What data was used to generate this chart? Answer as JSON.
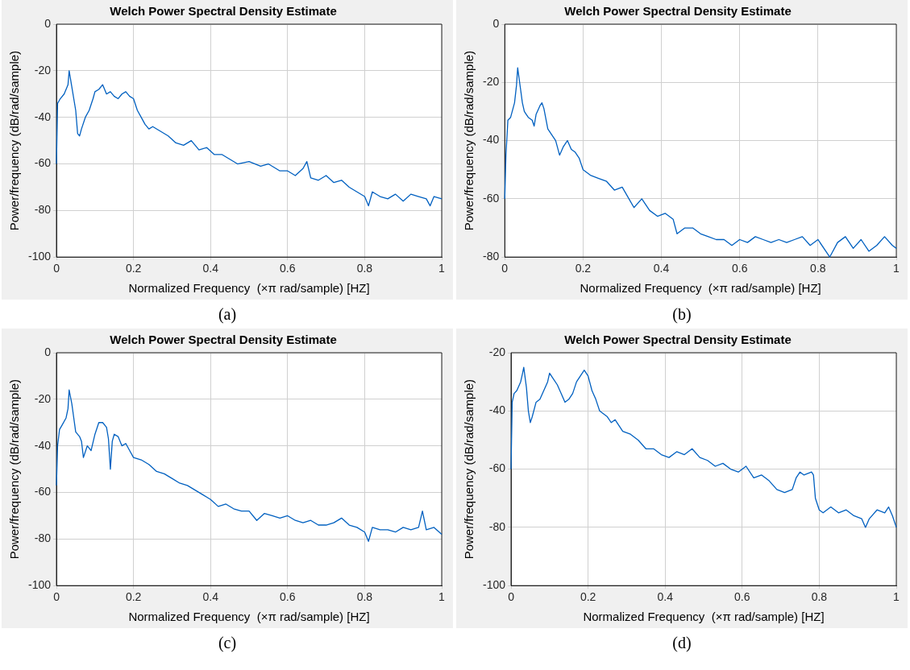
{
  "chart_data": [
    {
      "type": "line",
      "title": "Welch Power Spectral Density Estimate",
      "xlabel": "Normalized Frequency  (×π rad/sample) [HZ]",
      "ylabel": "Power/frequency (dB/rad/sample)",
      "annotations": [
        "(a)"
      ],
      "xlim": [
        0,
        1
      ],
      "xticks": [
        0,
        0.2,
        0.4,
        0.6,
        0.8,
        1
      ],
      "ylim": [
        -100,
        0
      ],
      "yticks": [
        -100,
        -80,
        -60,
        -40,
        -20,
        0
      ],
      "grid": true,
      "legend": false,
      "marker": "none",
      "series": [
        {
          "color": "#0060c0",
          "x": [
            0,
            0.003,
            0.01,
            0.02,
            0.03,
            0.033,
            0.04,
            0.05,
            0.055,
            0.06,
            0.065,
            0.075,
            0.085,
            0.095,
            0.1,
            0.11,
            0.12,
            0.13,
            0.14,
            0.15,
            0.16,
            0.17,
            0.18,
            0.19,
            0.2,
            0.21,
            0.22,
            0.23,
            0.24,
            0.25,
            0.27,
            0.29,
            0.31,
            0.33,
            0.35,
            0.37,
            0.39,
            0.41,
            0.43,
            0.45,
            0.47,
            0.5,
            0.53,
            0.55,
            0.58,
            0.6,
            0.62,
            0.64,
            0.65,
            0.66,
            0.68,
            0.7,
            0.72,
            0.74,
            0.76,
            0.78,
            0.8,
            0.81,
            0.82,
            0.84,
            0.86,
            0.88,
            0.9,
            0.92,
            0.94,
            0.96,
            0.97,
            0.98,
            1
          ],
          "values": [
            -60,
            -34,
            -32,
            -30,
            -26,
            -20,
            -27,
            -37,
            -47,
            -48,
            -45,
            -40,
            -37,
            -32,
            -29,
            -28,
            -26,
            -30,
            -29,
            -31,
            -32,
            -30,
            -29,
            -31,
            -32,
            -37,
            -40,
            -43,
            -45,
            -44,
            -46,
            -48,
            -51,
            -52,
            -50,
            -54,
            -53,
            -56,
            -56,
            -58,
            -60,
            -59,
            -61,
            -60,
            -63,
            -63,
            -65,
            -62,
            -59,
            -66,
            -67,
            -65,
            -68,
            -67,
            -70,
            -72,
            -74,
            -78,
            -72,
            -74,
            -75,
            -73,
            -76,
            -73,
            -74,
            -75,
            -78,
            -74,
            -75
          ]
        }
      ]
    },
    {
      "type": "line",
      "title": "Welch Power Spectral Density Estimate",
      "xlabel": "Normalized Frequency  (×π rad/sample) [HZ]",
      "ylabel": "Power/frequency (dB/rad/sample)",
      "annotations": [
        "(b)"
      ],
      "xlim": [
        0,
        1
      ],
      "xticks": [
        0,
        0.2,
        0.4,
        0.6,
        0.8,
        1
      ],
      "ylim": [
        -80,
        0
      ],
      "yticks": [
        -80,
        -60,
        -40,
        -20,
        0
      ],
      "grid": true,
      "legend": false,
      "marker": "none",
      "series": [
        {
          "color": "#0060c0",
          "x": [
            0,
            0.003,
            0.008,
            0.015,
            0.025,
            0.03,
            0.033,
            0.04,
            0.045,
            0.05,
            0.055,
            0.06,
            0.07,
            0.075,
            0.08,
            0.09,
            0.095,
            0.1,
            0.11,
            0.12,
            0.13,
            0.14,
            0.15,
            0.16,
            0.17,
            0.18,
            0.19,
            0.2,
            0.22,
            0.24,
            0.26,
            0.28,
            0.3,
            0.33,
            0.35,
            0.37,
            0.39,
            0.41,
            0.43,
            0.44,
            0.46,
            0.48,
            0.5,
            0.52,
            0.54,
            0.56,
            0.58,
            0.6,
            0.62,
            0.64,
            0.66,
            0.68,
            0.7,
            0.72,
            0.74,
            0.76,
            0.78,
            0.8,
            0.83,
            0.85,
            0.87,
            0.89,
            0.91,
            0.93,
            0.95,
            0.97,
            0.99,
            1
          ],
          "values": [
            -60,
            -45,
            -33,
            -32,
            -27,
            -21,
            -15,
            -22,
            -27,
            -30,
            -31,
            -32,
            -33,
            -35,
            -31,
            -28,
            -27,
            -29,
            -36,
            -38,
            -40,
            -45,
            -42,
            -40,
            -43,
            -44,
            -46,
            -50,
            -52,
            -53,
            -54,
            -57,
            -56,
            -63,
            -60,
            -64,
            -66,
            -65,
            -67,
            -72,
            -70,
            -70,
            -72,
            -73,
            -74,
            -74,
            -76,
            -74,
            -75,
            -73,
            -74,
            -75,
            -74,
            -75,
            -74,
            -73,
            -76,
            -74,
            -80,
            -75,
            -73,
            -77,
            -74,
            -78,
            -76,
            -73,
            -76,
            -77
          ]
        }
      ]
    },
    {
      "type": "line",
      "title": "Welch Power Spectral Density Estimate",
      "xlabel": "Normalized Frequency  (×π rad/sample) [HZ]",
      "ylabel": "Power/frequency (dB/rad/sample)",
      "annotations": [
        "(c)"
      ],
      "xlim": [
        0,
        1
      ],
      "xticks": [
        0,
        0.2,
        0.4,
        0.6,
        0.8,
        1
      ],
      "ylim": [
        -100,
        0
      ],
      "yticks": [
        -100,
        -80,
        -60,
        -40,
        -20,
        0
      ],
      "grid": true,
      "legend": false,
      "marker": "none",
      "series": [
        {
          "color": "#0060c0",
          "x": [
            0,
            0.003,
            0.008,
            0.015,
            0.025,
            0.03,
            0.033,
            0.04,
            0.045,
            0.05,
            0.06,
            0.065,
            0.07,
            0.08,
            0.09,
            0.1,
            0.11,
            0.12,
            0.13,
            0.135,
            0.14,
            0.145,
            0.15,
            0.16,
            0.17,
            0.18,
            0.19,
            0.2,
            0.22,
            0.24,
            0.26,
            0.28,
            0.3,
            0.32,
            0.34,
            0.36,
            0.38,
            0.4,
            0.42,
            0.44,
            0.46,
            0.48,
            0.5,
            0.52,
            0.54,
            0.56,
            0.58,
            0.6,
            0.62,
            0.64,
            0.66,
            0.68,
            0.7,
            0.72,
            0.74,
            0.76,
            0.78,
            0.8,
            0.81,
            0.82,
            0.84,
            0.86,
            0.88,
            0.9,
            0.92,
            0.94,
            0.95,
            0.96,
            0.98,
            1
          ],
          "values": [
            -57,
            -40,
            -33,
            -31,
            -28,
            -24,
            -16,
            -22,
            -28,
            -34,
            -36,
            -38,
            -45,
            -40,
            -42,
            -35,
            -30,
            -30,
            -32,
            -37,
            -50,
            -38,
            -35,
            -36,
            -40,
            -39,
            -42,
            -45,
            -46,
            -48,
            -51,
            -52,
            -54,
            -56,
            -57,
            -59,
            -61,
            -63,
            -66,
            -65,
            -67,
            -68,
            -68,
            -72,
            -69,
            -70,
            -71,
            -70,
            -72,
            -73,
            -72,
            -74,
            -74,
            -73,
            -71,
            -74,
            -75,
            -77,
            -81,
            -75,
            -76,
            -76,
            -77,
            -75,
            -76,
            -75,
            -68,
            -76,
            -75,
            -78
          ]
        }
      ]
    },
    {
      "type": "line",
      "title": "Welch Power Spectral Density Estimate",
      "xlabel": "Normalized Frequency  (×π rad/sample) [HZ]",
      "ylabel": "Power/frequency (dB/rad/sample)",
      "annotations": [
        "(d)"
      ],
      "xlim": [
        0,
        1
      ],
      "xticks": [
        0,
        0.2,
        0.4,
        0.6,
        0.8,
        1
      ],
      "ylim": [
        -100,
        -20
      ],
      "yticks": [
        -100,
        -80,
        -60,
        -40,
        -20
      ],
      "grid": true,
      "legend": false,
      "marker": "none",
      "series": [
        {
          "color": "#0060c0",
          "x": [
            0,
            0.003,
            0.008,
            0.015,
            0.025,
            0.03,
            0.033,
            0.04,
            0.045,
            0.05,
            0.055,
            0.065,
            0.075,
            0.085,
            0.095,
            0.1,
            0.11,
            0.12,
            0.13,
            0.14,
            0.15,
            0.16,
            0.17,
            0.18,
            0.19,
            0.2,
            0.21,
            0.22,
            0.23,
            0.25,
            0.26,
            0.27,
            0.29,
            0.31,
            0.33,
            0.35,
            0.37,
            0.39,
            0.41,
            0.43,
            0.45,
            0.47,
            0.49,
            0.51,
            0.53,
            0.55,
            0.57,
            0.59,
            0.61,
            0.63,
            0.65,
            0.67,
            0.69,
            0.71,
            0.73,
            0.74,
            0.75,
            0.76,
            0.78,
            0.785,
            0.79,
            0.8,
            0.81,
            0.83,
            0.85,
            0.87,
            0.89,
            0.91,
            0.92,
            0.93,
            0.95,
            0.97,
            0.98,
            0.99,
            1
          ],
          "values": [
            -60,
            -37,
            -34,
            -33,
            -30,
            -27,
            -25,
            -32,
            -40,
            -44,
            -42,
            -37,
            -36,
            -33,
            -30,
            -27,
            -29,
            -31,
            -34,
            -37,
            -36,
            -34,
            -30,
            -28,
            -26,
            -28,
            -33,
            -36,
            -40,
            -42,
            -44,
            -43,
            -47,
            -48,
            -50,
            -53,
            -53,
            -55,
            -56,
            -54,
            -55,
            -53,
            -56,
            -57,
            -59,
            -58,
            -60,
            -61,
            -59,
            -63,
            -62,
            -64,
            -67,
            -68,
            -67,
            -63,
            -61,
            -62,
            -61,
            -62,
            -70,
            -74,
            -75,
            -73,
            -75,
            -74,
            -76,
            -77,
            -80,
            -77,
            -74,
            -75,
            -73,
            -76,
            -80
          ]
        }
      ]
    }
  ]
}
